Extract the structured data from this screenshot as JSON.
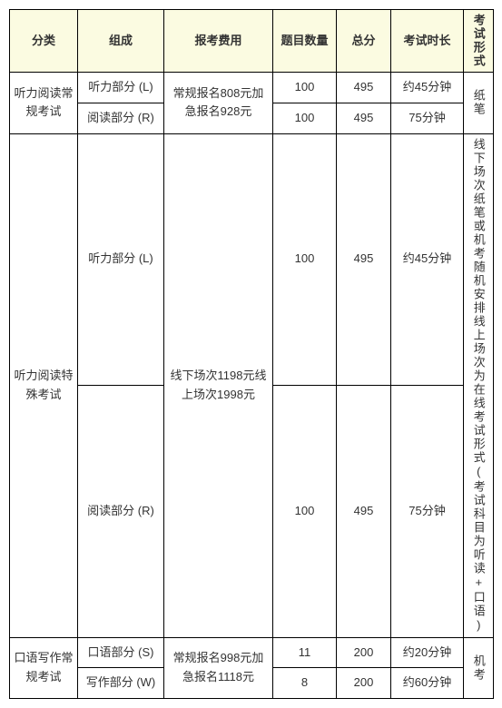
{
  "header": {
    "category": "分类",
    "composition": "组成",
    "fee": "报考费用",
    "questionCount": "题目数量",
    "totalScore": "总分",
    "duration": "考试时长",
    "form": "考试形式"
  },
  "rows": {
    "lrRegular": {
      "category": "听力阅读常规考试",
      "listening": "听力部分 (L)",
      "reading": "阅读部分 (R)",
      "fee": "常规报名808元加急报名928元",
      "q1": "100",
      "s1": "495",
      "d1": "约45分钟",
      "q2": "100",
      "s2": "495",
      "d2": "75分钟",
      "form": "纸笔"
    },
    "lrSpecial": {
      "category": "听力阅读特殊考试",
      "listening": "听力部分 (L)",
      "reading": "阅读部分 (R)",
      "fee": "线下场次1198元线上场次1998元",
      "q1": "100",
      "s1": "495",
      "d1": "约45分钟",
      "q2": "100",
      "s2": "495",
      "d2": "75分钟",
      "form": "线下场次纸笔或机考随机安排线上场次为在线考试形式(考试科目为听读+口语)"
    },
    "swRegular": {
      "category": "口语写作常规考试",
      "speaking": "口语部分 (S)",
      "writing": "写作部分 (W)",
      "fee": "常规报名998元加急报名1118元",
      "q1": "11",
      "s1": "200",
      "d1": "约20分钟",
      "q2": "8",
      "s2": "200",
      "d2": "约60分钟",
      "form": "机考"
    }
  }
}
